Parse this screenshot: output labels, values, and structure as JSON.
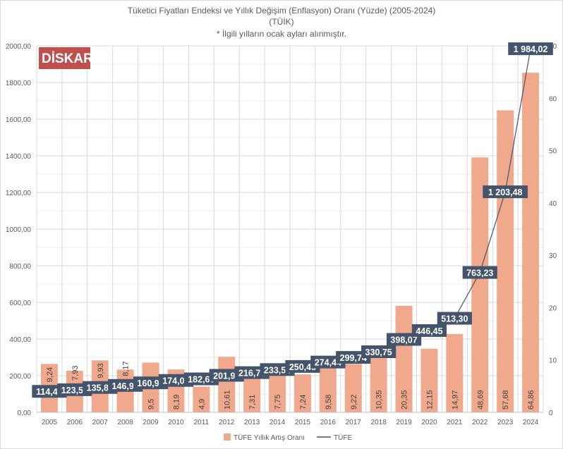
{
  "chart_data": {
    "type": "bar+line",
    "title": "Tüketici Fiyatları Endeksi ve Yıllık Değişim (Enflasyon) Oranı (Yüzde) (2005-2024)",
    "subtitle": "(TÜİK)",
    "note": "* İlgili yılların ocak ayları alınmıştır.",
    "logo_text": "DİSKAR",
    "categories": [
      "2005",
      "2006",
      "2007",
      "2008",
      "2009",
      "2010",
      "2011",
      "2012",
      "2013",
      "2014",
      "2015",
      "2016",
      "2017",
      "2018",
      "2019",
      "2020",
      "2021",
      "2022",
      "2023",
      "2024"
    ],
    "series": [
      {
        "name": "TÜFE Yıllık Artış Oranı",
        "type": "bar",
        "axis": "right",
        "color": "#F0A98C",
        "values": [
          9.24,
          7.93,
          9.93,
          8.17,
          9.5,
          8.19,
          4.9,
          10.61,
          7.31,
          7.75,
          7.24,
          9.58,
          9.22,
          10.35,
          20.35,
          12.15,
          14.97,
          48.69,
          57.68,
          64.86
        ],
        "labels": [
          "9,24",
          "7,93",
          "9,93",
          "8,17",
          "9,5",
          "8,19",
          "4,9",
          "10,61",
          "7,31",
          "7,75",
          "7,24",
          "9,58",
          "9,22",
          "10,35",
          "20,35",
          "12,15",
          "14,97",
          "48,69",
          "57,68",
          "64,86"
        ]
      },
      {
        "name": "TÜFE",
        "type": "line",
        "axis": "left",
        "color": "#44546A",
        "values": [
          114.49,
          123.57,
          135.84,
          146.94,
          160.9,
          174.07,
          182.6,
          201.98,
          216.74,
          233.54,
          250.45,
          274.44,
          299.74,
          330.75,
          398.07,
          446.45,
          513.3,
          763.23,
          1203.48,
          1984.02
        ],
        "labels": [
          "114,49",
          "123,57",
          "135,84",
          "146,94",
          "160,90",
          "174,07",
          "182,60",
          "201,98",
          "216,74",
          "233,54",
          "250,45",
          "274,44",
          "299,74",
          "330,75",
          "398,07",
          "446,45",
          "513,30",
          "763,23",
          "1 203,48",
          "1 984,02"
        ]
      }
    ],
    "ylim_left": [
      0,
      2000
    ],
    "yticks_left": [
      "0,00",
      "200,00",
      "400,00",
      "600,00",
      "800,00",
      "1000,00",
      "1200,00",
      "1400,00",
      "1600,00",
      "1800,00",
      "2000,00"
    ],
    "ylim_right": [
      0,
      70
    ],
    "yticks_right": [
      "0",
      "10",
      "20",
      "30",
      "40",
      "50",
      "60",
      "70"
    ],
    "grid": true,
    "legend_position": "bottom"
  }
}
